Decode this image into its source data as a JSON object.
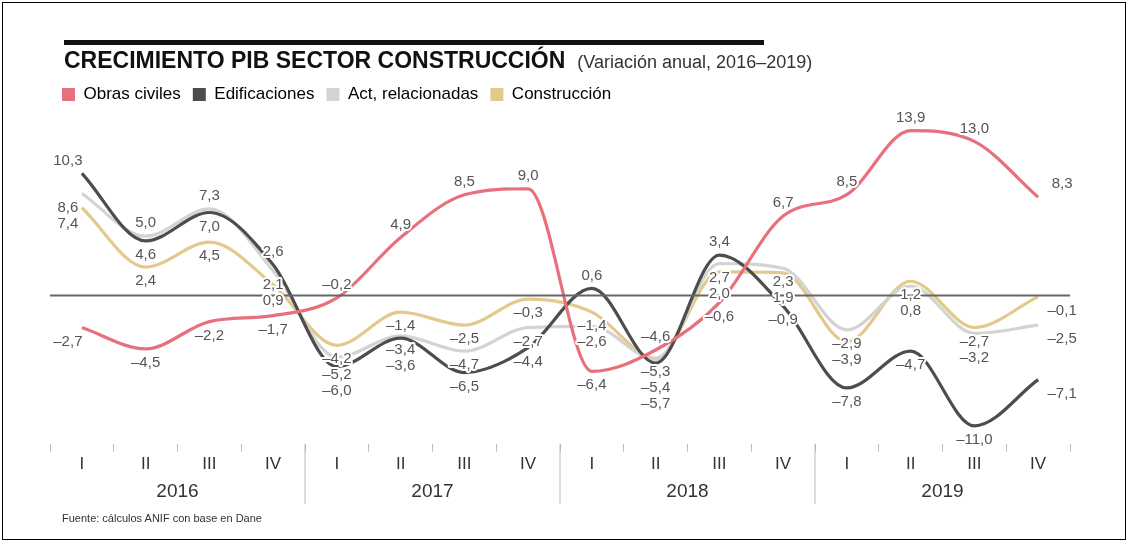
{
  "chart_data": {
    "type": "line",
    "title": "CRECIMIENTO PIB SECTOR CONSTRUCCIÓN",
    "subtitle": "(Variación anual, 2016–2019)",
    "categories": [
      "I",
      "II",
      "III",
      "IV",
      "I",
      "II",
      "III",
      "IV",
      "I",
      "II",
      "III",
      "IV",
      "I",
      "II",
      "III",
      "IV"
    ],
    "series": [
      {
        "name": "Obras civiles",
        "color": "#e8707c",
        "values": [
          -2.7,
          -4.5,
          -2.2,
          -1.7,
          -0.2,
          4.9,
          8.5,
          9.0,
          -6.4,
          -4.6,
          -0.6,
          6.7,
          8.5,
          13.9,
          13.0,
          8.3
        ],
        "value_labels": [
          "–2,7",
          "–4,5",
          "–2,2",
          "–1,7",
          "–0,2",
          "4,9",
          "8,5",
          "9,0",
          "–6,4",
          "–4,6",
          "–0,6",
          "6,7",
          "8,5",
          "13,9",
          "13,0",
          "8,3"
        ]
      },
      {
        "name": "Edificaciones",
        "color": "#4d4d4d",
        "values": [
          10.3,
          4.6,
          7.0,
          2.6,
          -6.0,
          -3.6,
          -6.5,
          -4.4,
          0.6,
          -5.7,
          3.4,
          -0.9,
          -7.8,
          -4.7,
          -11.0,
          -7.1
        ],
        "value_labels": [
          "10,3",
          "4,6",
          "7,0",
          "2,6",
          "–6,0",
          "–3,6",
          "–6,5",
          "–4,4",
          "0,6",
          "–5,7",
          "3,4",
          "–0,9",
          "–7,8",
          "–4,7",
          "–11,0",
          "–7,1"
        ]
      },
      {
        "name": "Act, relacionadas",
        "color": "#d3d3d3",
        "values": [
          8.6,
          5.0,
          7.3,
          2.1,
          -5.2,
          -3.4,
          -4.7,
          -2.7,
          -2.6,
          -5.4,
          2.7,
          2.3,
          -2.9,
          0.8,
          -3.2,
          -2.5
        ],
        "value_labels": [
          "8,6",
          "5,0",
          "7,3",
          "2,1",
          "–5,2",
          "–3,4",
          "–4,7",
          "–2,7",
          "–2,6",
          "–5,4",
          "2,7",
          "2,3",
          "–2,9",
          "0,8",
          "–3,2",
          "–2,5"
        ]
      },
      {
        "name": "Construcción",
        "color": "#e3c98c",
        "values": [
          7.4,
          2.4,
          4.5,
          0.9,
          -4.2,
          -1.4,
          -2.5,
          -0.3,
          -1.4,
          -5.3,
          2.0,
          1.9,
          -3.9,
          1.2,
          -2.7,
          -0.1
        ],
        "value_labels": [
          "7,4",
          "2,4",
          "4,5",
          "0,9",
          "–4,2",
          "–1,4",
          "–2,5",
          "–0,3",
          "–1,4",
          "–5,3",
          "2,0",
          "1,9",
          "–3,9",
          "1,2",
          "–2,7",
          "–0,1"
        ]
      }
    ],
    "ref_lines": [
      {
        "axis": "y",
        "value": 0,
        "color": "#666666"
      }
    ],
    "annotations": [
      "2016",
      "2017",
      "2018",
      "2019",
      "Fuente: cálculos ANIF con base en  Dane"
    ],
    "legend": "top left",
    "marker": "none",
    "line_style": "solid"
  }
}
